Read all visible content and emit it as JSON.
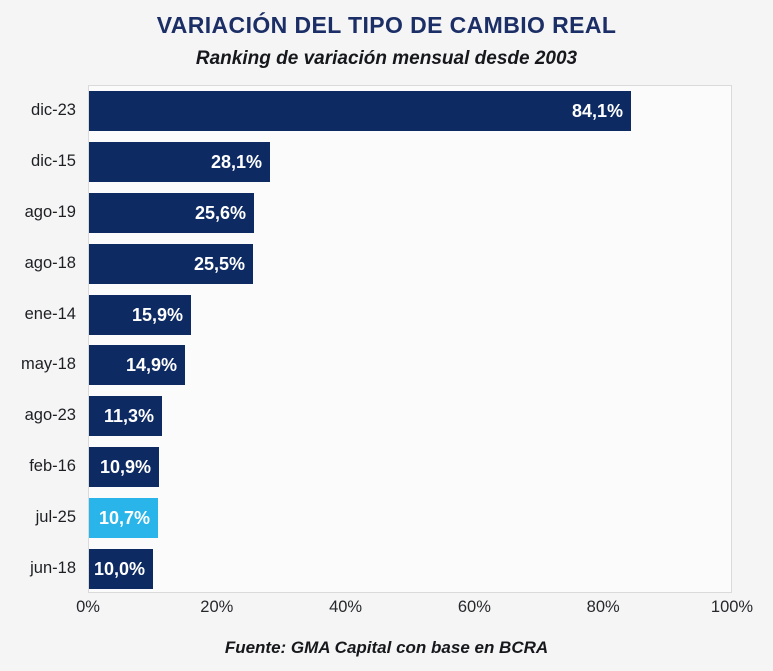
{
  "header": {
    "title": "VARIACIÓN DEL TIPO DE CAMBIO REAL",
    "subtitle": "Ranking de variación mensual desde 2003"
  },
  "footer": {
    "source": "Fuente: GMA Capital con base en BCRA"
  },
  "colors": {
    "bar_default": "#0d2a63",
    "bar_highlight": "#29b4ea",
    "title_navy": "#1b2f66",
    "value_label_text": "#ffffff",
    "page_background": "#f5f5f6",
    "plot_background": "#fbfbfc",
    "plot_border": "#dadada"
  },
  "chart_data": {
    "type": "bar",
    "orientation": "horizontal",
    "title": "VARIACIÓN DEL TIPO DE CAMBIO REAL",
    "subtitle": "Ranking de variación mensual desde 2003",
    "categories": [
      "dic-23",
      "dic-15",
      "ago-19",
      "ago-18",
      "ene-14",
      "may-18",
      "ago-23",
      "feb-16",
      "jul-25",
      "jun-18"
    ],
    "values": [
      84.1,
      28.1,
      25.6,
      25.5,
      15.9,
      14.9,
      11.3,
      10.9,
      10.7,
      10.0
    ],
    "value_labels": [
      "84,1%",
      "28,1%",
      "25,6%",
      "25,5%",
      "15,9%",
      "14,9%",
      "11,3%",
      "10,9%",
      "10,7%",
      "10,0%"
    ],
    "highlight_index": 8,
    "xlim": [
      0,
      100
    ],
    "x_ticks": [
      {
        "value": 0,
        "label": "0%"
      },
      {
        "value": 20,
        "label": "20%"
      },
      {
        "value": 40,
        "label": "40%"
      },
      {
        "value": 60,
        "label": "60%"
      },
      {
        "value": 80,
        "label": "80%"
      },
      {
        "value": 100,
        "label": "100%"
      }
    ],
    "grid": false,
    "legend": false,
    "xlabel": "",
    "ylabel": ""
  }
}
